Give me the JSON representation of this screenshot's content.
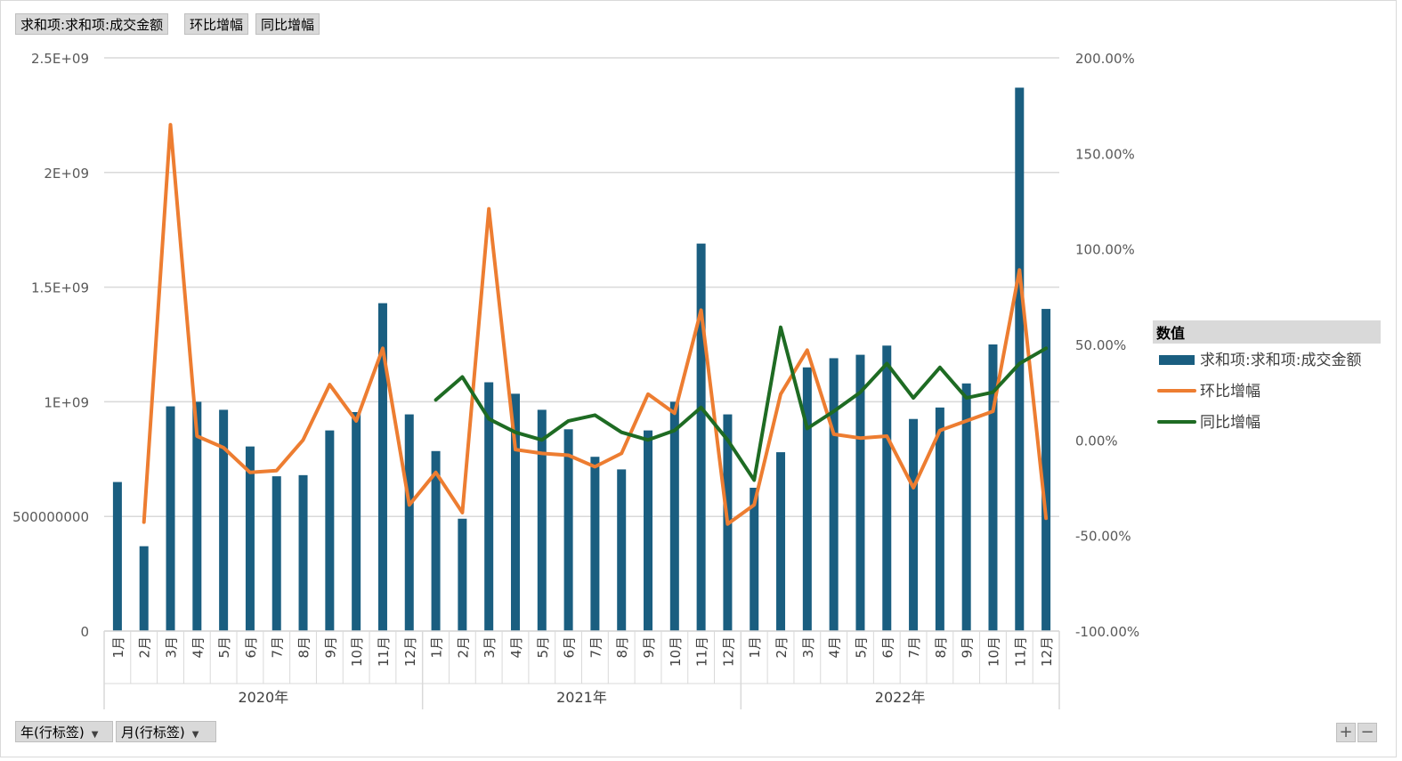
{
  "field_buttons": {
    "values": [
      "求和项:求和项:成交金额",
      "环比增幅",
      "同比增幅"
    ],
    "rows": [
      "年(行标签)",
      "月(行标签)"
    ]
  },
  "zoom": {
    "plus": "+",
    "minus": "−"
  },
  "colors": {
    "bar": "#1a5e80",
    "mom": "#ed7d31",
    "yoy": "#1e6b23",
    "grid": "#d9d9d9",
    "axis_text": "#595959"
  },
  "chart_data": {
    "type": "bar",
    "years": [
      "2020年",
      "2021年",
      "2022年"
    ],
    "month_labels": [
      "1月",
      "2月",
      "3月",
      "4月",
      "5月",
      "6月",
      "7月",
      "8月",
      "9月",
      "10月",
      "11月",
      "12月"
    ],
    "y_left": {
      "min": 0,
      "max": 2500000000,
      "ticks": [
        0,
        500000000,
        1000000000,
        1500000000,
        2000000000,
        2500000000
      ],
      "tick_labels": [
        "0",
        "500000000",
        "1E+09",
        "1.5E+09",
        "2E+09",
        "2.5E+09"
      ]
    },
    "y_right": {
      "min": -100,
      "max": 200,
      "ticks": [
        -100,
        -50,
        0,
        50,
        100,
        150,
        200
      ],
      "tick_labels": [
        "-100.00%",
        "-50.00%",
        "0.00%",
        "50.00%",
        "100.00%",
        "150.00%",
        "200.00%"
      ]
    },
    "grid": true,
    "legend": {
      "title": "数值",
      "position": "right"
    },
    "series": [
      {
        "name": "求和项:求和项:成交金额",
        "type": "bar",
        "axis": "left",
        "values": [
          650000000,
          370000000,
          980000000,
          1000000000,
          965000000,
          805000000,
          675000000,
          680000000,
          875000000,
          955000000,
          1430000000,
          945000000,
          785000000,
          490000000,
          1085000000,
          1035000000,
          965000000,
          880000000,
          760000000,
          705000000,
          875000000,
          1000000000,
          1690000000,
          945000000,
          625000000,
          780000000,
          1150000000,
          1190000000,
          1205000000,
          1245000000,
          925000000,
          975000000,
          1080000000,
          1250000000,
          2370000000,
          1405000000
        ]
      },
      {
        "name": "环比增幅",
        "type": "line",
        "axis": "right",
        "values": [
          null,
          -43,
          165,
          2,
          -4,
          -17,
          -16,
          0,
          29,
          10,
          48,
          -34,
          -17,
          -38,
          121,
          -5,
          -7,
          -8,
          -14,
          -7,
          24,
          14,
          68,
          -44,
          -34,
          24,
          47,
          3,
          1,
          2,
          -25,
          5,
          10,
          15,
          89,
          -41
        ]
      },
      {
        "name": "同比增幅",
        "type": "line",
        "axis": "right",
        "values": [
          null,
          null,
          null,
          null,
          null,
          null,
          null,
          null,
          null,
          null,
          null,
          null,
          21,
          33,
          11,
          4,
          0,
          10,
          13,
          4,
          0,
          5,
          17,
          0,
          -21,
          59,
          6,
          15,
          25,
          40,
          22,
          38,
          22,
          25,
          40,
          48
        ]
      }
    ]
  }
}
